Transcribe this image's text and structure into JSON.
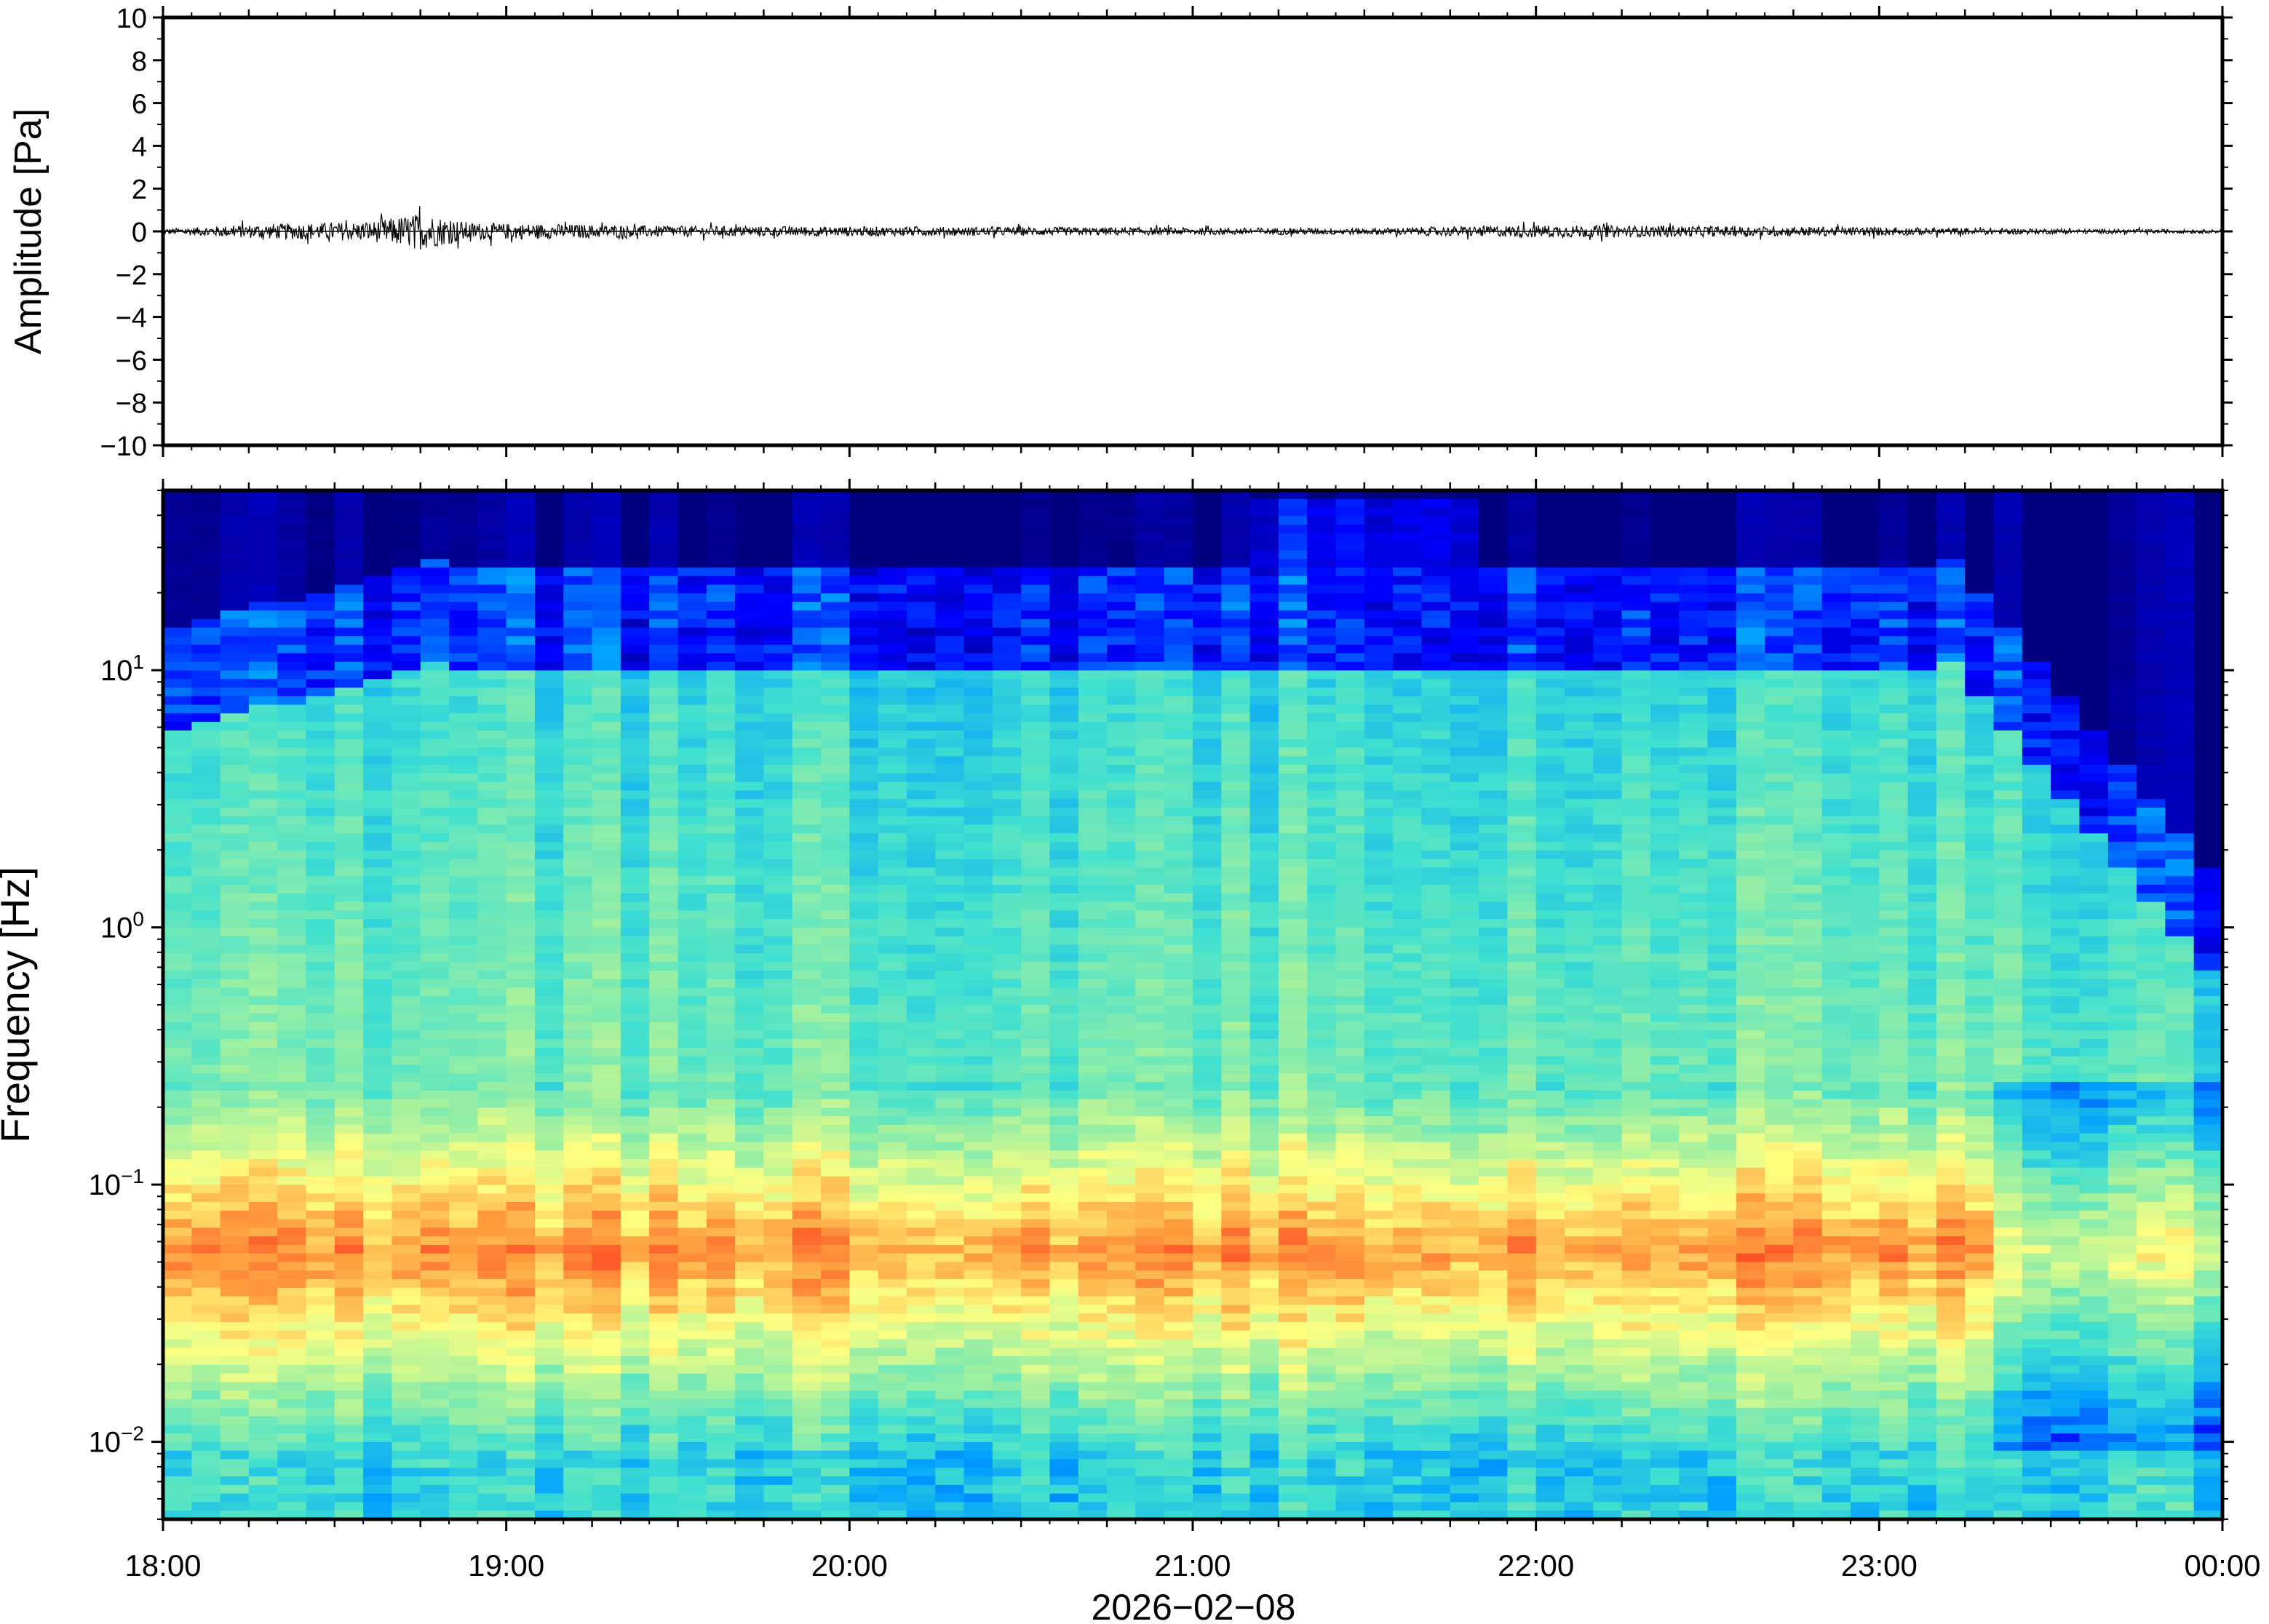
{
  "chart_data": [
    {
      "type": "line",
      "ylabel": "Amplitude [Pa]",
      "ylim": [
        -10,
        10
      ],
      "yticks": [
        10,
        8,
        6,
        4,
        2,
        0,
        -2,
        -4,
        -6,
        -8,
        -10
      ],
      "ytick_labels": [
        "10",
        "8",
        "6",
        "4",
        "2",
        "0",
        "−2",
        "−4",
        "−6",
        "−8",
        "−10"
      ],
      "x_range": [
        "18:00",
        "00:00"
      ],
      "series": [
        {
          "description_values_hours": [
            0,
            0.3,
            0.6,
            0.75,
            0.9,
            1.5,
            2.5,
            3.5,
            4.0,
            5.0,
            5.5,
            6.0
          ],
          "approx_peak_amplitude": [
            0.12,
            0.35,
            0.45,
            0.85,
            0.4,
            0.25,
            0.2,
            0.15,
            0.3,
            0.2,
            0.12,
            0.08
          ]
        }
      ],
      "line_color": "#000000",
      "grid": false
    },
    {
      "type": "heatmap",
      "ylabel": "Frequency [Hz]",
      "yscale": "log",
      "ylim": [
        0.005,
        50
      ],
      "ytick_labels": [
        {
          "base": "10",
          "exp": "1",
          "value": 10
        },
        {
          "base": "10",
          "exp": "0",
          "value": 1
        },
        {
          "base": "10",
          "exp": "−1",
          "value": 0.1
        },
        {
          "base": "10",
          "exp": "−2",
          "value": 0.01
        }
      ],
      "xlabel": "2026−02−08",
      "xticks": [
        "18:00",
        "19:00",
        "20:00",
        "21:00",
        "22:00",
        "23:00",
        "00:00"
      ],
      "colormap": "jet",
      "color_stops": [
        "#000080",
        "#0000ff",
        "#00a0ff",
        "#40e0d0",
        "#a0f0a0",
        "#ffff80",
        "#ffa040",
        "#ff4020"
      ],
      "notes_values": {
        "peak_energy_band_hz": [
          0.03,
          0.1
        ],
        "broadband_burst_hours": [
          3.2,
          3.85
        ]
      },
      "grid": false
    }
  ]
}
